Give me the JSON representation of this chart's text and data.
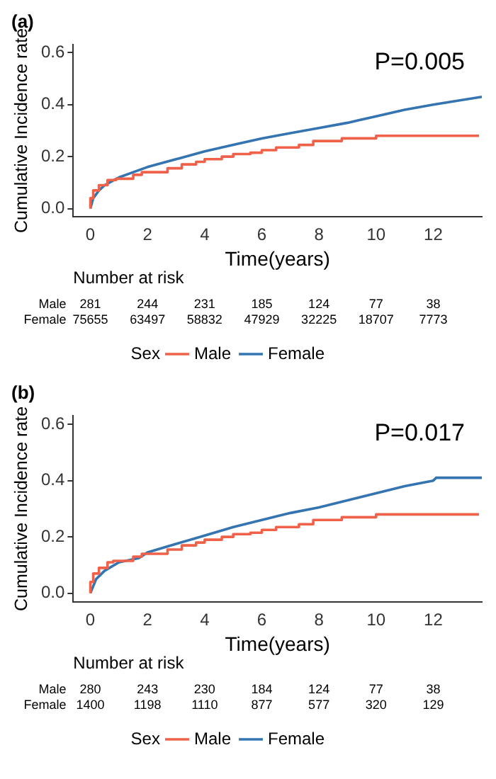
{
  "chart_data": [
    {
      "type": "line",
      "title": "(a)",
      "xlabel": "Time(years)",
      "ylabel": "Cumulative Incidence rate",
      "legend_title": "Sex",
      "legend": "bottom",
      "grid": false,
      "xlim": [
        -0.6,
        13.7
      ],
      "xticks": [
        0,
        2,
        4,
        6,
        8,
        10,
        12
      ],
      "ylim": [
        -0.03,
        0.63
      ],
      "yticks": [
        {
          "value": 0,
          "label": "0.0"
        },
        {
          "value": 0.2,
          "label": "0.2"
        },
        {
          "value": 0.4,
          "label": "0.4"
        },
        {
          "value": 0.6,
          "label": "0.6"
        }
      ],
      "series": [
        {
          "name": "Male",
          "type": "step",
          "color": "#f0614a",
          "x": [
            0,
            0.1,
            0.3,
            0.6,
            0.9,
            1.5,
            1.8,
            2,
            2.7,
            3.2,
            3.7,
            4,
            4.6,
            5,
            5.6,
            6,
            6.5,
            7.3,
            7.8,
            8.8,
            10,
            11,
            13.6
          ],
          "values": [
            0,
            0.04,
            0.07,
            0.09,
            0.11,
            0.115,
            0.13,
            0.14,
            0.14,
            0.155,
            0.17,
            0.18,
            0.19,
            0.2,
            0.21,
            0.215,
            0.225,
            0.235,
            0.245,
            0.26,
            0.27,
            0.28,
            0.28
          ]
        },
        {
          "name": "Female",
          "color": "#3474b0",
          "x": [
            0,
            0.1,
            0.3,
            0.5,
            1,
            1.5,
            2,
            3,
            4,
            5,
            6,
            7,
            8,
            9,
            10,
            11,
            12,
            13.7
          ],
          "values": [
            0,
            0.04,
            0.07,
            0.09,
            0.12,
            0.14,
            0.16,
            0.19,
            0.22,
            0.245,
            0.27,
            0.29,
            0.31,
            0.33,
            0.355,
            0.38,
            0.4,
            0.43
          ]
        }
      ],
      "annotations": [
        "P=0.005",
        "Number at risk",
        "Male",
        "281",
        "244",
        "231",
        "185",
        "124",
        "77",
        "38",
        "Female",
        "75655",
        "63497",
        "58832",
        "47929",
        "32225",
        "18707",
        "7773"
      ]
    },
    {
      "type": "line",
      "title": "(b)",
      "xlabel": "Time(years)",
      "ylabel": "Cumulative Incidence rate",
      "legend_title": "Sex",
      "legend": "bottom",
      "grid": false,
      "xlim": [
        -0.6,
        13.7
      ],
      "xticks": [
        0,
        2,
        4,
        6,
        8,
        10,
        12
      ],
      "ylim": [
        -0.03,
        0.63
      ],
      "yticks": [
        {
          "value": 0,
          "label": "0.0"
        },
        {
          "value": 0.2,
          "label": "0.2"
        },
        {
          "value": 0.4,
          "label": "0.4"
        },
        {
          "value": 0.6,
          "label": "0.6"
        }
      ],
      "series": [
        {
          "name": "Male",
          "type": "step",
          "color": "#f0614a",
          "x": [
            0,
            0.1,
            0.3,
            0.6,
            0.8,
            1.5,
            1.8,
            2,
            2.7,
            3.2,
            3.7,
            4,
            4.6,
            5,
            5.6,
            6,
            6.5,
            7.3,
            7.8,
            8.8,
            10,
            11,
            13.6
          ],
          "values": [
            0,
            0.04,
            0.07,
            0.09,
            0.11,
            0.115,
            0.13,
            0.14,
            0.14,
            0.155,
            0.17,
            0.18,
            0.19,
            0.2,
            0.21,
            0.215,
            0.225,
            0.235,
            0.245,
            0.26,
            0.27,
            0.28,
            0.28
          ]
        },
        {
          "name": "Female",
          "color": "#3474b0",
          "x": [
            0,
            0.2,
            0.5,
            1,
            1.7,
            2,
            2.5,
            3,
            4,
            5,
            6,
            7,
            8,
            9,
            10,
            11,
            12,
            12.1,
            13.7
          ],
          "values": [
            0,
            0.05,
            0.08,
            0.11,
            0.125,
            0.145,
            0.16,
            0.175,
            0.205,
            0.235,
            0.26,
            0.285,
            0.305,
            0.33,
            0.355,
            0.38,
            0.4,
            0.41,
            0.41
          ]
        }
      ],
      "annotations": [
        "P=0.017",
        "Number at risk",
        "Male",
        "280",
        "243",
        "230",
        "184",
        "124",
        "77",
        "38",
        "Female",
        "1400",
        "1198",
        "1110",
        "877",
        "577",
        "320",
        "129"
      ]
    }
  ]
}
